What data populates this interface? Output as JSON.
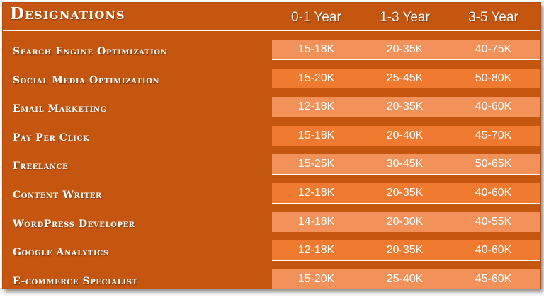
{
  "header": {
    "title": "Designations",
    "columns": [
      "0-1 Year",
      "1-3 Year",
      "3-5 Year"
    ]
  },
  "rows": [
    {
      "designation": "Search Engine Optimization",
      "values": [
        "15-18K",
        "20-35K",
        "40-75K"
      ]
    },
    {
      "designation": "Social Media Optimization",
      "values": [
        "15-20K",
        "25-45K",
        "50-80K"
      ]
    },
    {
      "designation": "Email Marketing",
      "values": [
        "12-18K",
        "20-35K",
        "40-60K"
      ]
    },
    {
      "designation": "Pay Per Click",
      "values": [
        "15-18K",
        "20-40K",
        "45-70K"
      ]
    },
    {
      "designation": "Freelance",
      "values": [
        "15-25K",
        "30-45K",
        "50-65K"
      ]
    },
    {
      "designation": "Content Writer",
      "values": [
        "12-18K",
        "20-35K",
        "40-60K"
      ]
    },
    {
      "designation": "WordPress Developer",
      "values": [
        "14-18K",
        "20-30K",
        "40-55K"
      ]
    },
    {
      "designation": "Google Analytics",
      "values": [
        "12-18K",
        "20-35K",
        "40-60K"
      ]
    },
    {
      "designation": "E-commerce Specialist",
      "values": [
        "15-20K",
        "25-40K",
        "45-60K"
      ]
    }
  ],
  "colors": {
    "header": "#c5560f",
    "label_panel": "#c5560f",
    "band_light": "#f2925a",
    "band_dark": "#ef7a30",
    "text": "#ffffff"
  }
}
